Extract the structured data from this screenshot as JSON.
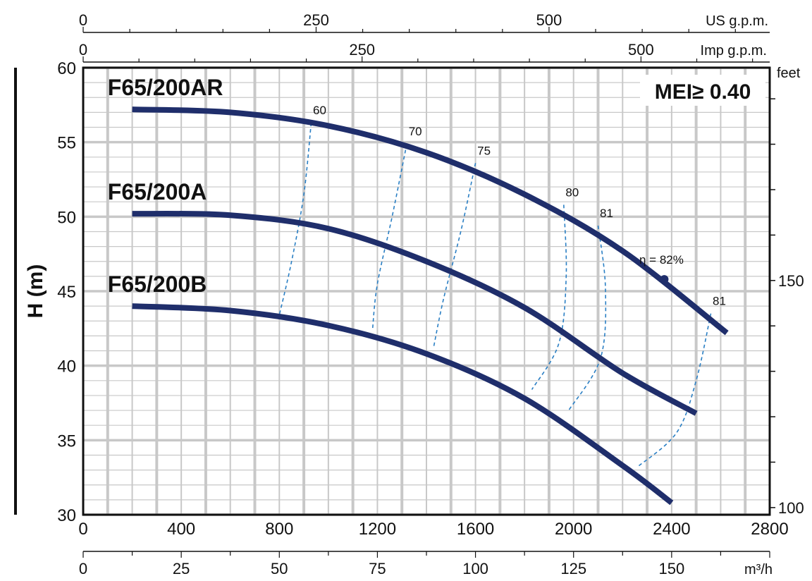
{
  "chart_data": {
    "type": "line",
    "title": "",
    "ylabel": "H (m)",
    "xlim": [
      0,
      2800
    ],
    "ylim": [
      30,
      60
    ],
    "x_ticks": [
      "0",
      "400",
      "800",
      "1200",
      "1600",
      "2000",
      "2400",
      "2800"
    ],
    "y_ticks": [
      "30",
      "35",
      "40",
      "45",
      "50",
      "55",
      "60"
    ],
    "grid": true,
    "top_axis_us": {
      "unit": "US g.p.m.",
      "ticks": [
        "0",
        "250",
        "500"
      ]
    },
    "top_axis_imp": {
      "unit": "Imp g.p.m.",
      "ticks": [
        "0",
        "250",
        "500"
      ]
    },
    "bottom_axis_m3h": {
      "unit": "m³/h",
      "ticks": [
        "0",
        "25",
        "50",
        "75",
        "100",
        "125",
        "150"
      ]
    },
    "right_axis_feet": {
      "unit": "feet",
      "ticks": [
        "100",
        "150"
      ]
    },
    "mei_label": "MEI≥ 0.40",
    "series": [
      {
        "name": "F65/200AR",
        "x": [
          200,
          600,
          1000,
          1400,
          1800,
          2200,
          2625
        ],
        "y": [
          57.2,
          57.0,
          56.1,
          54.3,
          51.5,
          47.7,
          42.2
        ]
      },
      {
        "name": "F65/200A",
        "x": [
          200,
          600,
          1000,
          1400,
          1800,
          2200,
          2500
        ],
        "y": [
          50.2,
          50.1,
          49.2,
          47.0,
          43.9,
          39.5,
          36.8
        ]
      },
      {
        "name": "F65/200B",
        "x": [
          200,
          600,
          1000,
          1400,
          1800,
          2200,
          2400
        ],
        "y": [
          44.0,
          43.7,
          42.7,
          40.8,
          37.8,
          33.3,
          30.8
        ]
      }
    ],
    "efficiency_isolines": [
      {
        "label": "60",
        "x": [
          930,
          900,
          850,
          800
        ],
        "y": [
          56.3,
          51.5,
          47.0,
          43.4
        ]
      },
      {
        "label": "70",
        "x": [
          1320,
          1260,
          1200,
          1180
        ],
        "y": [
          54.9,
          50.0,
          45.5,
          42.4
        ]
      },
      {
        "label": "75",
        "x": [
          1600,
          1540,
          1470,
          1430
        ],
        "y": [
          53.6,
          49.0,
          44.5,
          41.3
        ]
      },
      {
        "label": "80",
        "x": [
          1960,
          1970,
          1940,
          1830
        ],
        "y": [
          50.8,
          46.0,
          41.5,
          38.4
        ]
      },
      {
        "label": "81",
        "x": [
          2100,
          2130,
          2110,
          1980
        ],
        "y": [
          49.4,
          45.2,
          40.5,
          37.0
        ]
      },
      {
        "label": "81",
        "x": [
          2560,
          2500,
          2420,
          2260
        ],
        "y": [
          43.5,
          39.0,
          35.5,
          33.2
        ]
      }
    ],
    "bep_point": {
      "label": "η = 82%",
      "x": 2370,
      "y": 45.8
    }
  }
}
